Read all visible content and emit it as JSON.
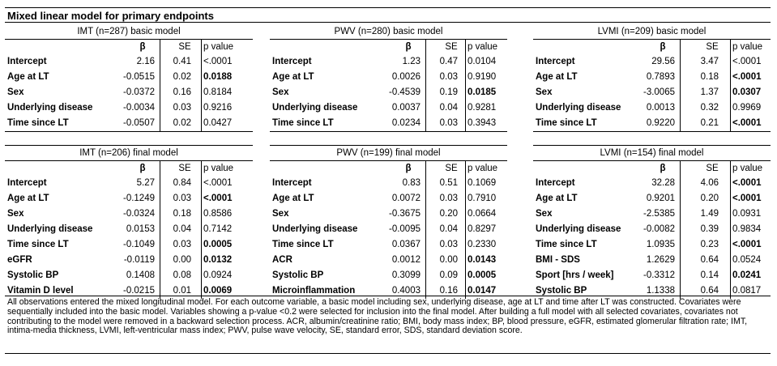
{
  "title": "Mixed linear model for primary endpoints",
  "column_headers": {
    "beta": "β",
    "se": "SE",
    "p": "p value"
  },
  "panels": [
    {
      "header": "IMT (n=287) basic model",
      "rows": [
        {
          "label": "Intercept",
          "beta": "2.16",
          "se": "0.41",
          "p": "<.0001",
          "bold": false
        },
        {
          "label": "Age at LT",
          "beta": "-0.0515",
          "se": "0.02",
          "p": "0.0188",
          "bold": true
        },
        {
          "label": "Sex",
          "beta": "-0.0372",
          "se": "0.16",
          "p": "0.8184",
          "bold": false
        },
        {
          "label": "Underlying disease",
          "beta": "-0.0034",
          "se": "0.03",
          "p": "0.9216",
          "bold": false
        },
        {
          "label": "Time since LT",
          "beta": "-0.0507",
          "se": "0.02",
          "p": "0.0427",
          "bold": false
        }
      ]
    },
    {
      "header": "PWV (n=280)  basic model",
      "rows": [
        {
          "label": "Intercept",
          "beta": "1.23",
          "se": "0.47",
          "p": "0.0104",
          "bold": false
        },
        {
          "label": "Age at LT",
          "beta": "0.0026",
          "se": "0.03",
          "p": "0.9190",
          "bold": false
        },
        {
          "label": "Sex",
          "beta": "-0.4539",
          "se": "0.19",
          "p": "0.0185",
          "bold": true
        },
        {
          "label": "Underlying disease",
          "beta": "0.0037",
          "se": "0.04",
          "p": "0.9281",
          "bold": false
        },
        {
          "label": "Time since LT",
          "beta": "0.0234",
          "se": "0.03",
          "p": "0.3943",
          "bold": false
        }
      ]
    },
    {
      "header": "LVMI (n=209)  basic model",
      "rows": [
        {
          "label": "Intercept",
          "beta": "29.56",
          "se": "3.47",
          "p": "<.0001",
          "bold": false
        },
        {
          "label": "Age at LT",
          "beta": "0.7893",
          "se": "0.18",
          "p": "<.0001",
          "bold": true
        },
        {
          "label": "Sex",
          "beta": "-3.0065",
          "se": "1.37",
          "p": "0.0307",
          "bold": true
        },
        {
          "label": "Underlying disease",
          "beta": "0.0013",
          "se": "0.32",
          "p": "0.9969",
          "bold": false
        },
        {
          "label": "Time since LT",
          "beta": "0.9220",
          "se": "0.21",
          "p": "<.0001",
          "bold": true
        }
      ]
    },
    {
      "header": "IMT (n=206) final model",
      "rows": [
        {
          "label": "Intercept",
          "beta": "5.27",
          "se": "0.84",
          "p": "<.0001",
          "bold": false
        },
        {
          "label": "Age at LT",
          "beta": "-0.1249",
          "se": "0.03",
          "p": "<.0001",
          "bold": true
        },
        {
          "label": "Sex",
          "beta": "-0.0324",
          "se": "0.18",
          "p": "0.8586",
          "bold": false
        },
        {
          "label": "Underlying disease",
          "beta": "0.0153",
          "se": "0.04",
          "p": "0.7142",
          "bold": false
        },
        {
          "label": "Time since LT",
          "beta": "-0.1049",
          "se": "0.03",
          "p": "0.0005",
          "bold": true
        },
        {
          "label": "eGFR",
          "beta": "-0.0119",
          "se": "0.00",
          "p": "0.0132",
          "bold": true
        },
        {
          "label": "Systolic BP",
          "beta": "0.1408",
          "se": "0.08",
          "p": "0.0924",
          "bold": false
        },
        {
          "label": "Vitamin D level",
          "beta": "-0.0215",
          "se": "0.01",
          "p": "0.0069",
          "bold": true
        }
      ]
    },
    {
      "header": "PWV (n=199) final model",
      "rows": [
        {
          "label": "Intercept",
          "beta": "0.83",
          "se": "0.51",
          "p": "0.1069",
          "bold": false
        },
        {
          "label": "Age at LT",
          "beta": "0.0072",
          "se": "0.03",
          "p": "0.7910",
          "bold": false
        },
        {
          "label": "Sex",
          "beta": "-0.3675",
          "se": "0.20",
          "p": "0.0664",
          "bold": false
        },
        {
          "label": "Underlying disease",
          "beta": "-0.0095",
          "se": "0.04",
          "p": "0.8297",
          "bold": false
        },
        {
          "label": "Time since LT",
          "beta": "0.0367",
          "se": "0.03",
          "p": "0.2330",
          "bold": false
        },
        {
          "label": "ACR",
          "beta": "0.0012",
          "se": "0.00",
          "p": "0.0143",
          "bold": true
        },
        {
          "label": "Systolic BP",
          "beta": "0.3099",
          "se": "0.09",
          "p": "0.0005",
          "bold": true
        },
        {
          "label": "Microinflammation",
          "beta": "0.4003",
          "se": "0.16",
          "p": "0.0147",
          "bold": true
        }
      ]
    },
    {
      "header": "LVMI (n=154) final model",
      "rows": [
        {
          "label": "Intercept",
          "beta": "32.28",
          "se": "4.06",
          "p": "<.0001",
          "bold": true
        },
        {
          "label": "Age at LT",
          "beta": "0.9201",
          "se": "0.20",
          "p": "<.0001",
          "bold": true
        },
        {
          "label": "Sex",
          "beta": "-2.5385",
          "se": "1.49",
          "p": "0.0931",
          "bold": false
        },
        {
          "label": "Underlying disease",
          "beta": "-0.0082",
          "se": "0.39",
          "p": "0.9834",
          "bold": false
        },
        {
          "label": "Time since LT",
          "beta": "1.0935",
          "se": "0.23",
          "p": "<.0001",
          "bold": true
        },
        {
          "label": "BMI - SDS",
          "beta": "1.2629",
          "se": "0.64",
          "p": "0.0524",
          "bold": false
        },
        {
          "label": "Sport [hrs / week]",
          "beta": "-0.3312",
          "se": "0.14",
          "p": "0.0241",
          "bold": true
        },
        {
          "label": "Systolic BP",
          "beta": "1.1338",
          "se": "0.64",
          "p": "0.0817",
          "bold": false
        }
      ]
    }
  ],
  "footnote": "All observations entered the mixed longitudinal model. For each outcome variable, a basic model including sex, underlying disease, age at LT and time after LT was constructed. Covariates were sequentially included into the basic model. Variables showing a p-value <0.2 were selected for inclusion into the final model. After building a full model with all selected covariates, covariates not contributing to the model were removed in a backward selection process. ACR, albumin/creatinine ratio; BMI, body mass index; BP, blood pressure, eGFR, estimated glomerular filtration rate; IMT, intima-media thickness, LVMI, left-ventricular mass index; PWV, pulse wave velocity, SE, standard error, SDS, standard deviation score."
}
